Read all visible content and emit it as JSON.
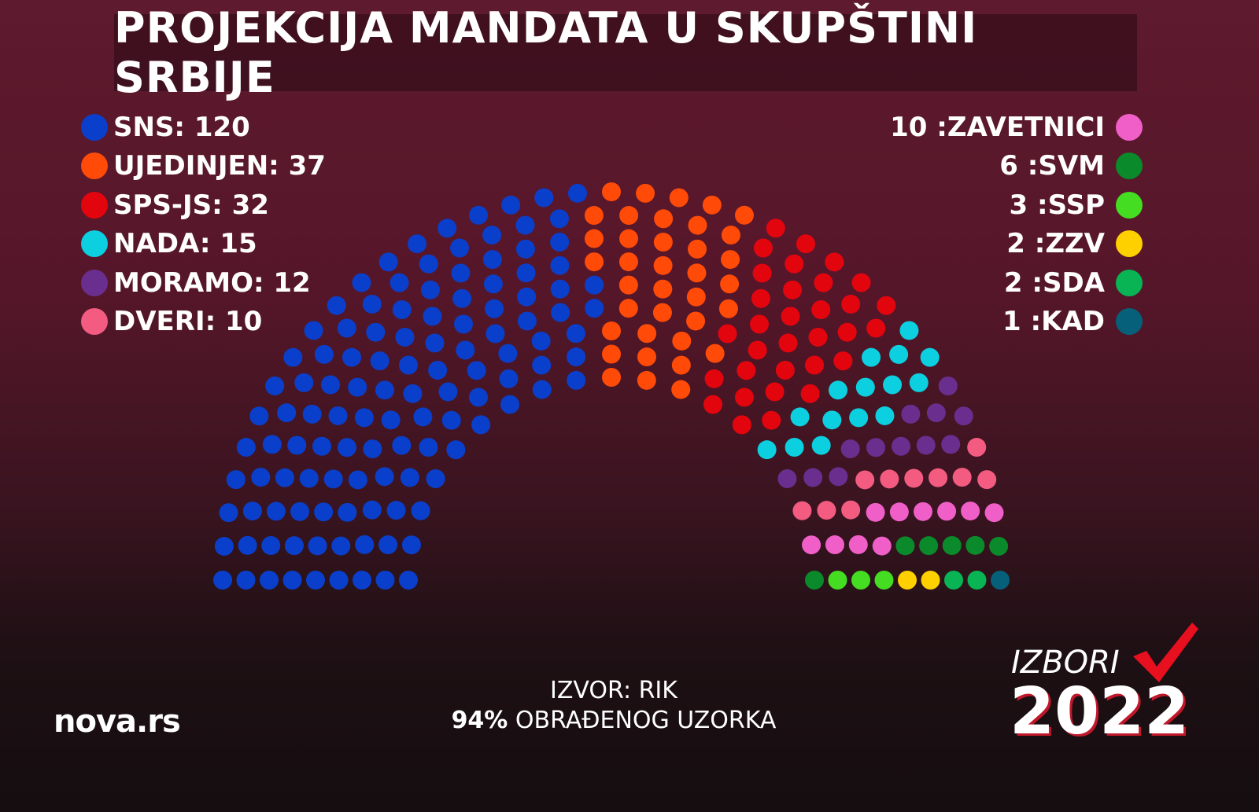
{
  "title": "PROJEKCIJA MANDATA U SKUPŠTINI SRBIJE",
  "chart_data": {
    "type": "parliament",
    "title": "PROJEKCIJA MANDATA U SKUPŠTINI SRBIJE",
    "total_seats": 250,
    "series": [
      {
        "name": "SNS",
        "value": 120,
        "color": "#0a3fcc"
      },
      {
        "name": "UJEDINJEN",
        "value": 37,
        "color": "#ff4a08"
      },
      {
        "name": "SPS-JS",
        "value": 32,
        "color": "#e3050e"
      },
      {
        "name": "NADA",
        "value": 15,
        "color": "#0ccfe0"
      },
      {
        "name": "MORAMO",
        "value": 12,
        "color": "#6a2e8e"
      },
      {
        "name": "DVERI",
        "value": 10,
        "color": "#f35c80"
      },
      {
        "name": "ZAVETNICI",
        "value": 10,
        "color": "#f05fc8"
      },
      {
        "name": "SVM",
        "value": 6,
        "color": "#0a8a2a"
      },
      {
        "name": "SSP",
        "value": 3,
        "color": "#44dd22"
      },
      {
        "name": "ZZV",
        "value": 2,
        "color": "#ffd000"
      },
      {
        "name": "SDA",
        "value": 2,
        "color": "#09b455"
      },
      {
        "name": "KAD",
        "value": 1,
        "color": "#06607a"
      }
    ],
    "legend_left": [
      {
        "label": "SNS: 120",
        "color": "#0a3fcc"
      },
      {
        "label": "UJEDINJEN: 37",
        "color": "#ff4a08"
      },
      {
        "label": "SPS-JS: 32",
        "color": "#e3050e"
      },
      {
        "label": "NADA: 15",
        "color": "#0ccfe0"
      },
      {
        "label": "MORAMO: 12",
        "color": "#6a2e8e"
      },
      {
        "label": "DVERI: 10",
        "color": "#f35c80"
      }
    ],
    "legend_right": [
      {
        "label": "10 :ZAVETNICI",
        "color": "#f05fc8"
      },
      {
        "label": "6 :SVM",
        "color": "#0a8a2a"
      },
      {
        "label": "3 :SSP",
        "color": "#44dd22"
      },
      {
        "label": "2 :ZZV",
        "color": "#ffd000"
      },
      {
        "label": "2 :SDA",
        "color": "#09b455"
      },
      {
        "label": "1 :KAD",
        "color": "#06607a"
      }
    ]
  },
  "source": {
    "line1": "IZVOR: RIK",
    "percent": "94%",
    "line2": "OBRAĐENOG UZORKA"
  },
  "logo": "nova.rs",
  "brand": {
    "izbori": "IZBORI",
    "year": "2022",
    "accent": "#e8101e"
  }
}
